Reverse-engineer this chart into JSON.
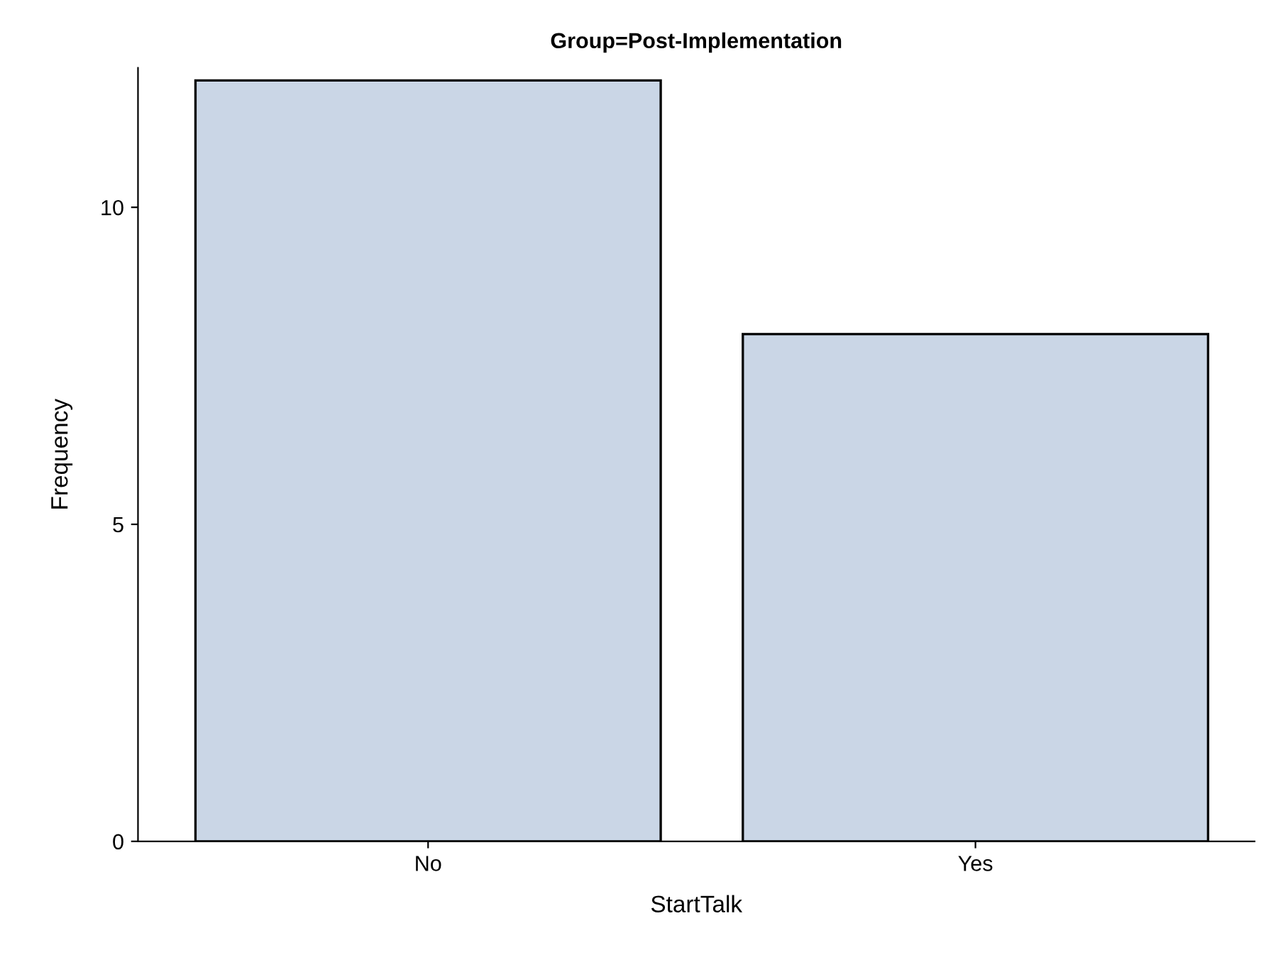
{
  "chart_data": {
    "type": "bar",
    "title": "Group=Post-Implementation",
    "xlabel": "StartTalk",
    "ylabel": "Frequency",
    "categories": [
      "No",
      "Yes"
    ],
    "series": [
      {
        "color": "#cad6e6",
        "values": [
          12,
          8
        ]
      }
    ],
    "ylim": [
      0,
      12.2
    ],
    "yticks": [
      0,
      5,
      10
    ],
    "grid": false,
    "legend": false
  }
}
